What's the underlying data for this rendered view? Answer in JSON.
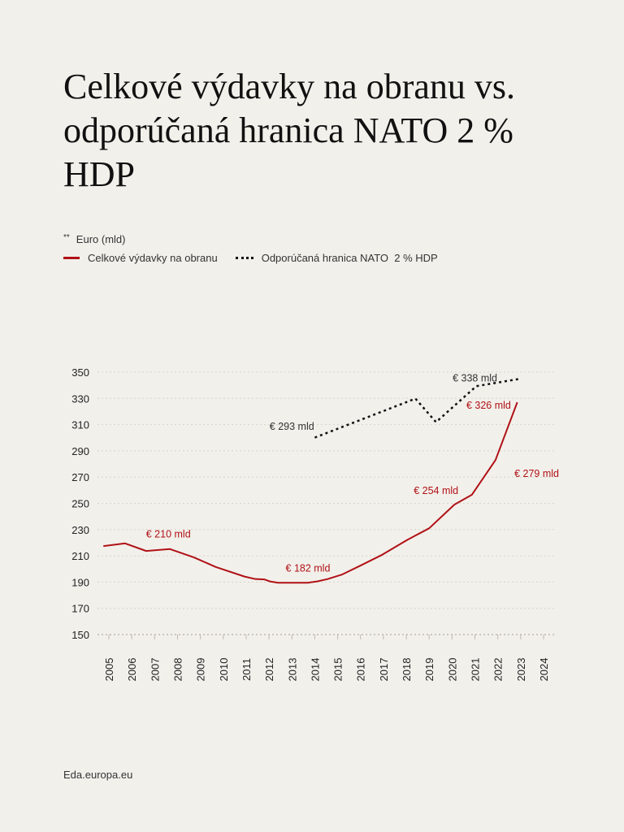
{
  "title": "Celkové výdavky na obranu vs. odporúčaná hranica NATO 2 % HDP",
  "unit_marker": "**",
  "unit_label": "Euro (mld)",
  "source": "Eda.europa.eu",
  "colors": {
    "spending": "#b01116",
    "nato": "#111111",
    "grid": "#d6d3cc"
  },
  "chart_data": {
    "type": "line",
    "title": "Celkové výdavky na obranu vs. odporúčaná hranica NATO 2 % HDP",
    "ylabel": "Euro (mld)",
    "ylim": [
      150,
      350
    ],
    "xlim": [
      2005,
      2024
    ],
    "yticks": [
      "150",
      "170",
      "190",
      "210",
      "230",
      "250",
      "270",
      "290",
      "310",
      "330",
      "350"
    ],
    "xticks": [
      "2005",
      "2006",
      "2007",
      "2008",
      "2009",
      "2010",
      "2011",
      "2012",
      "2013",
      "2014",
      "2015",
      "2016",
      "2017",
      "2018",
      "2019",
      "2020",
      "2021",
      "2022",
      "2023",
      "2024"
    ],
    "grid": true,
    "legend_placement": "top-left",
    "series": [
      {
        "name": "Celkové výdavky na obranu",
        "style": "solid",
        "x": [
          2004.76,
          2005.71,
          2006.63,
          2007.66,
          2008.72,
          2009.67,
          2010.93,
          2011.4,
          2011.8,
          2012.04,
          2012.4,
          2013.7,
          2014.1,
          2014.56,
          2015.2,
          2016.0,
          2016.9,
          2018.05,
          2019.0,
          2020.1,
          2020.87,
          2021.9,
          2022.85
        ],
        "y": [
          217.4,
          219.5,
          213.7,
          215.2,
          208.8,
          201.5,
          194.2,
          192.3,
          192,
          190.5,
          189.5,
          189.5,
          190.5,
          192.3,
          195.8,
          202.6,
          210.4,
          222.2,
          231,
          249,
          256.6,
          283,
          327
        ]
      },
      {
        "name": "Odporúčaná hranica NATO  2 % HDP",
        "style": "dotted",
        "x": [
          2014.0,
          2018.4,
          2019.3,
          2021.06,
          2022.93
        ],
        "y": [
          300.1,
          329.8,
          311.9,
          339.3,
          344.8
        ]
      }
    ],
    "annotations": [
      {
        "text": "€ 210 mld",
        "series": 0,
        "x": 2007.6,
        "y": 224
      },
      {
        "text": "€ 182 mld",
        "series": 0,
        "x": 2013.7,
        "y": 198
      },
      {
        "text": "€ 254 mld",
        "series": 0,
        "x": 2019.3,
        "y": 257
      },
      {
        "text": "€ 279 mld",
        "series": 0,
        "x": 2023.7,
        "y": 270
      },
      {
        "text": "€ 326 mld",
        "series": 0,
        "x": 2021.6,
        "y": 322
      },
      {
        "text": "€ 293 mld",
        "series": 1,
        "x": 2013.0,
        "y": 306
      },
      {
        "text": "€ 338 mld",
        "series": 1,
        "x": 2021.0,
        "y": 343
      }
    ]
  }
}
